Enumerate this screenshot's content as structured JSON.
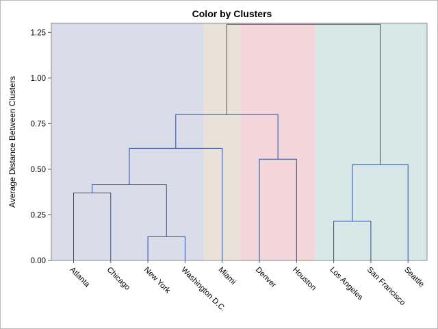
{
  "chart_data": {
    "type": "dendrogram",
    "title": "Color by Clusters",
    "ylabel": "Average Distance Between Clusters",
    "xlabel": "",
    "ylim": [
      0,
      1.3
    ],
    "yticks": [
      0.0,
      0.25,
      0.5,
      0.75,
      1.0,
      1.25
    ],
    "ytick_labels": [
      "0.00",
      "0.25",
      "0.50",
      "0.75",
      "1.00",
      "1.25"
    ],
    "leaves": [
      "Atlanta",
      "Chicago",
      "New York",
      "Washington D.C.",
      "Miami",
      "Denver",
      "Houston",
      "Los Angeles",
      "San Francisco",
      "Seattle"
    ],
    "merges": [
      {
        "children": [
          "Atlanta",
          "Chicago"
        ],
        "height": 0.37
      },
      {
        "children": [
          "New York",
          "Washington D.C."
        ],
        "height": 0.13
      },
      {
        "children": [
          "Atlanta+Chicago",
          "New York+Washington D.C."
        ],
        "height": 0.415
      },
      {
        "children": [
          "East4",
          "Miami"
        ],
        "height": 0.615
      },
      {
        "children": [
          "Denver",
          "Houston"
        ],
        "height": 0.555
      },
      {
        "children": [
          "East5",
          "Denver+Houston"
        ],
        "height": 0.8
      },
      {
        "children": [
          "Los Angeles",
          "San Francisco"
        ],
        "height": 0.215
      },
      {
        "children": [
          "LA+SF",
          "Seattle"
        ],
        "height": 0.525
      },
      {
        "children": [
          "Central7",
          "West3"
        ],
        "height": 1.295
      }
    ],
    "clusters": [
      {
        "leaves": [
          "Atlanta",
          "Chicago",
          "New York",
          "Washington D.C."
        ],
        "color": "#dadcea"
      },
      {
        "leaves": [
          "Miami"
        ],
        "color": "#eae2d8"
      },
      {
        "leaves": [
          "Denver",
          "Houston"
        ],
        "color": "#f3d6da"
      },
      {
        "leaves": [
          "Los Angeles",
          "San Francisco",
          "Seattle"
        ],
        "color": "#d7e8e6"
      }
    ],
    "line_color": "#2a4a9c",
    "grid": false
  }
}
